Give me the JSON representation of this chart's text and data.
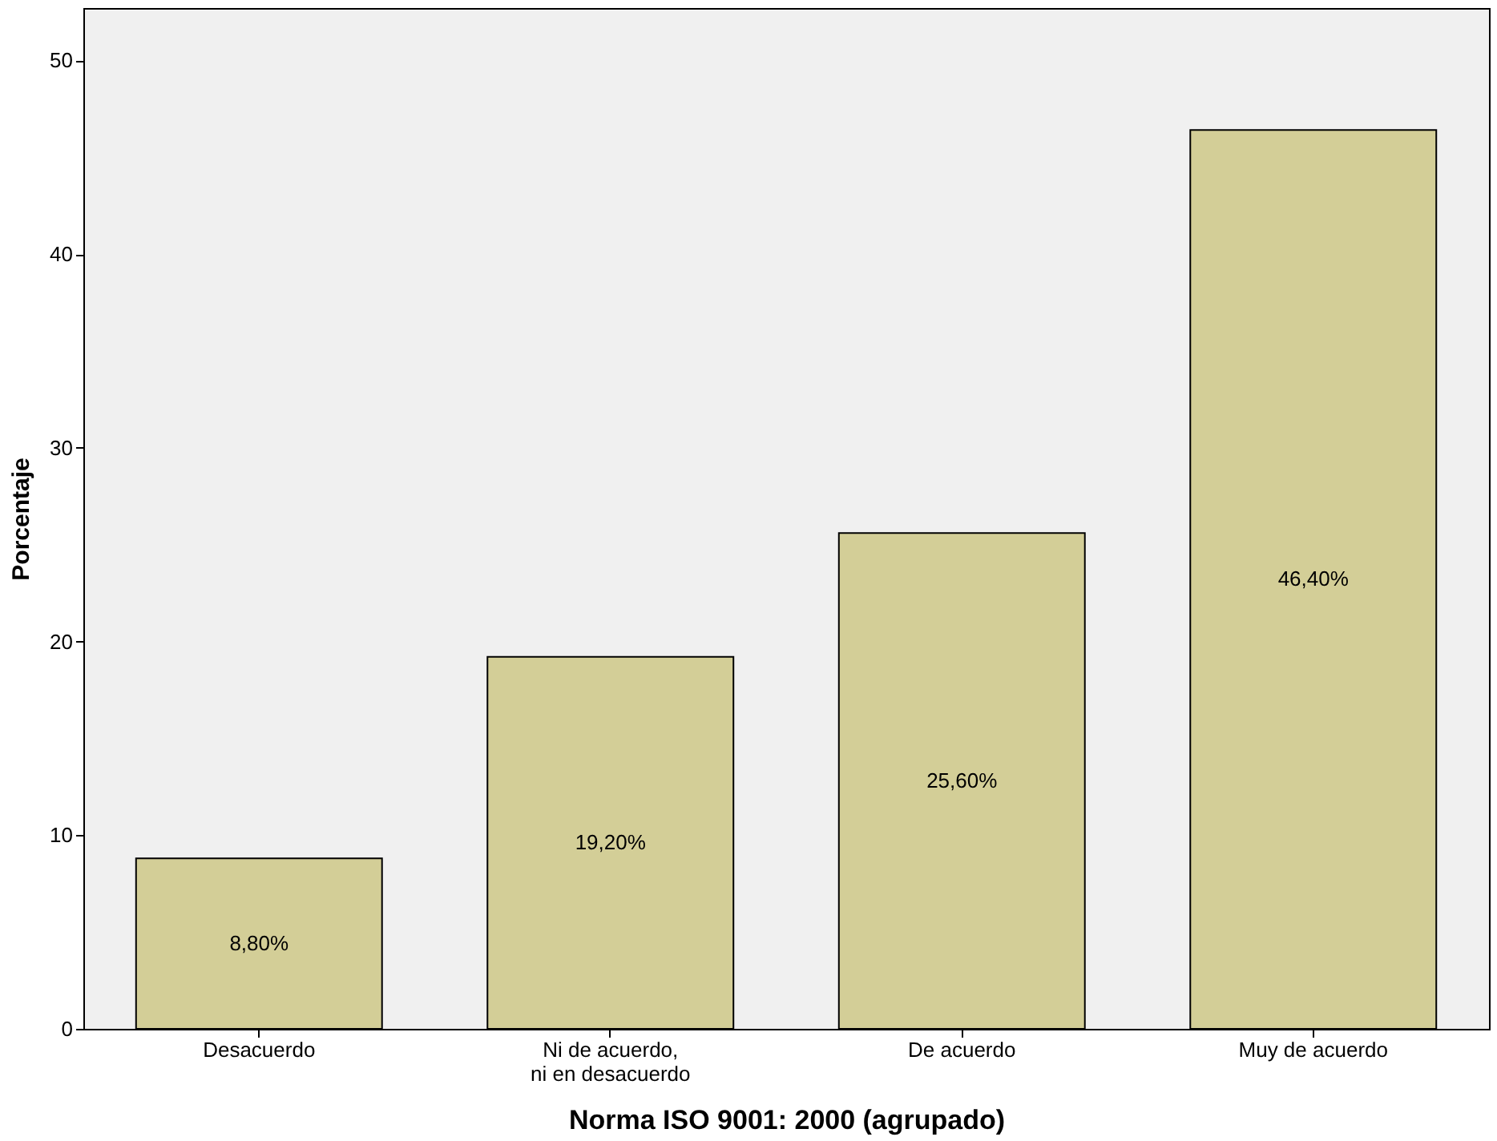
{
  "chart_data": {
    "type": "bar",
    "xlabel": "Norma ISO 9001: 2000 (agrupado)",
    "ylabel": "Porcentaje",
    "categories": [
      "Desacuerdo",
      "Ni de acuerdo, ni en desacuerdo",
      "De acuerdo",
      "Muy de acuerdo"
    ],
    "values": [
      8.8,
      19.2,
      25.6,
      46.4
    ],
    "value_labels": [
      "8,80%",
      "19,20%",
      "25,60%",
      "46,40%"
    ],
    "color": "#d3ce97",
    "ylim": [
      0,
      52.7
    ],
    "yticks": [
      0,
      10,
      20,
      30,
      40,
      50
    ],
    "grid": false
  }
}
